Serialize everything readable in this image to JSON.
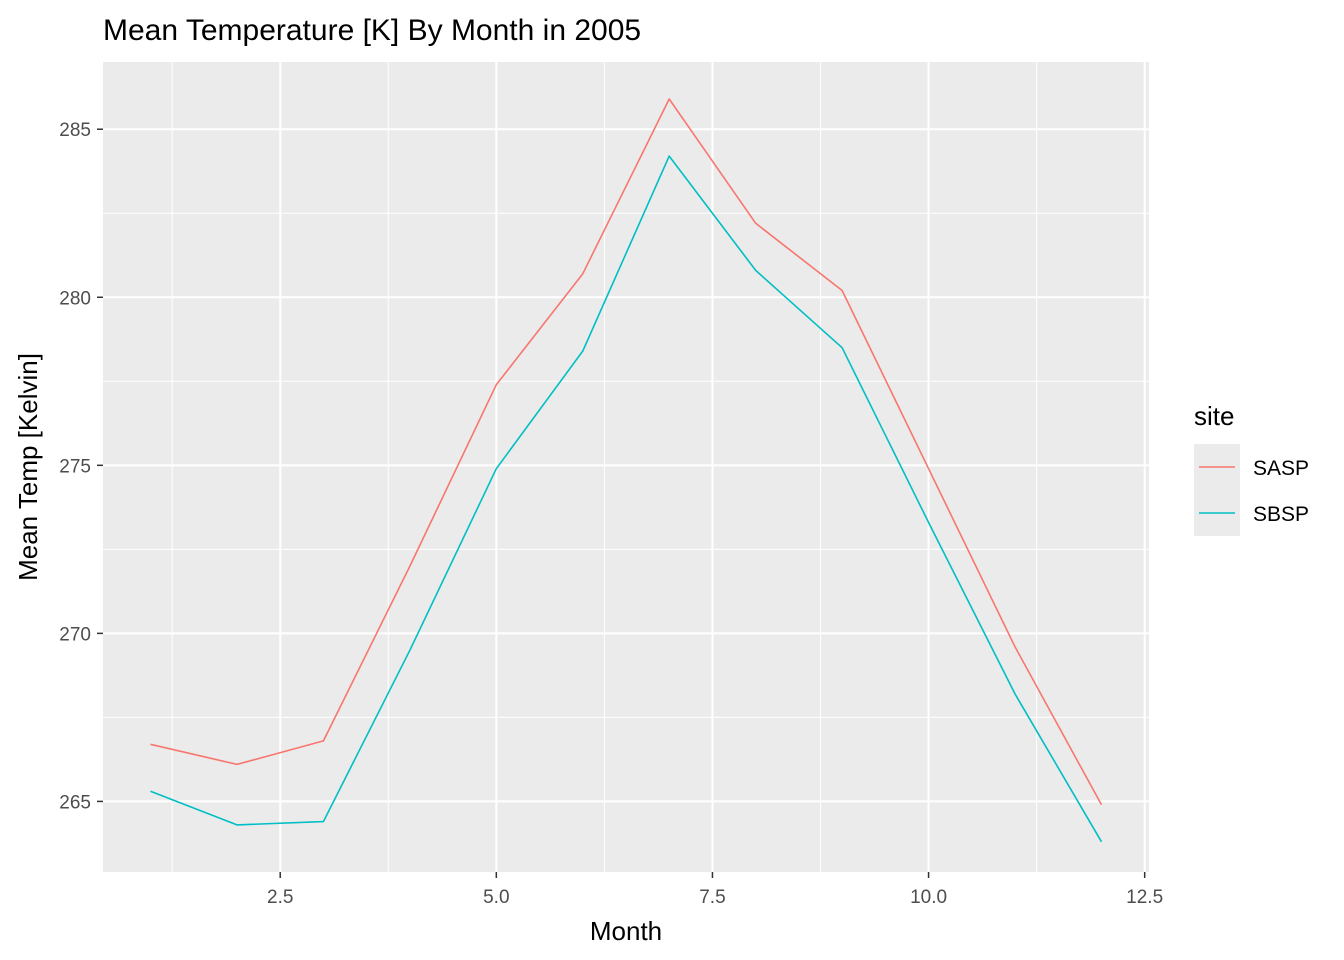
{
  "chart_data": {
    "type": "line",
    "title": "Mean Temperature [K] By Month in 2005",
    "xlabel": "Month",
    "ylabel": "Mean Temp [Kelvin]",
    "xlim": [
      0.45,
      12.55
    ],
    "ylim": [
      262.9,
      287.0
    ],
    "x_ticks": [
      2.5,
      5.0,
      7.5,
      10.0,
      12.5
    ],
    "x_tick_labels": [
      "2.5",
      "5.0",
      "7.5",
      "10.0",
      "12.5"
    ],
    "y_ticks": [
      265,
      270,
      275,
      280,
      285
    ],
    "y_tick_labels": [
      "265",
      "270",
      "275",
      "280",
      "285"
    ],
    "grid": true,
    "panel_background": "#EBEBEB",
    "legend": {
      "title": "site",
      "placement": "right"
    },
    "x": [
      1,
      2,
      3,
      4,
      5,
      6,
      7,
      8,
      9,
      10,
      11,
      12
    ],
    "series": [
      {
        "name": "SASP",
        "color": "#F8766D",
        "values": [
          266.7,
          266.1,
          266.8,
          272.0,
          277.4,
          280.7,
          285.9,
          282.2,
          280.2,
          274.9,
          269.6,
          264.9
        ]
      },
      {
        "name": "SBSP",
        "color": "#00BFC4",
        "values": [
          265.3,
          264.3,
          264.4,
          269.5,
          274.9,
          278.4,
          284.2,
          280.8,
          278.5,
          273.3,
          268.2,
          263.8
        ]
      }
    ]
  }
}
